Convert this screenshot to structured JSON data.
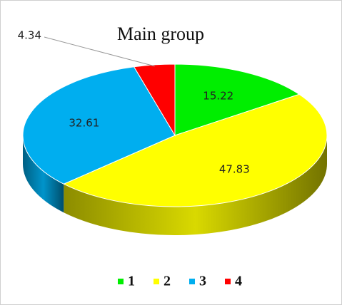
{
  "chart_data": {
    "type": "pie",
    "title": "Main group",
    "categories": [
      "1",
      "2",
      "3",
      "4"
    ],
    "values": [
      15.22,
      47.83,
      32.61,
      4.34
    ],
    "colors": [
      "#00ee00",
      "#ffff00",
      "#00aeef",
      "#ff0000"
    ],
    "legend": "bottom"
  }
}
